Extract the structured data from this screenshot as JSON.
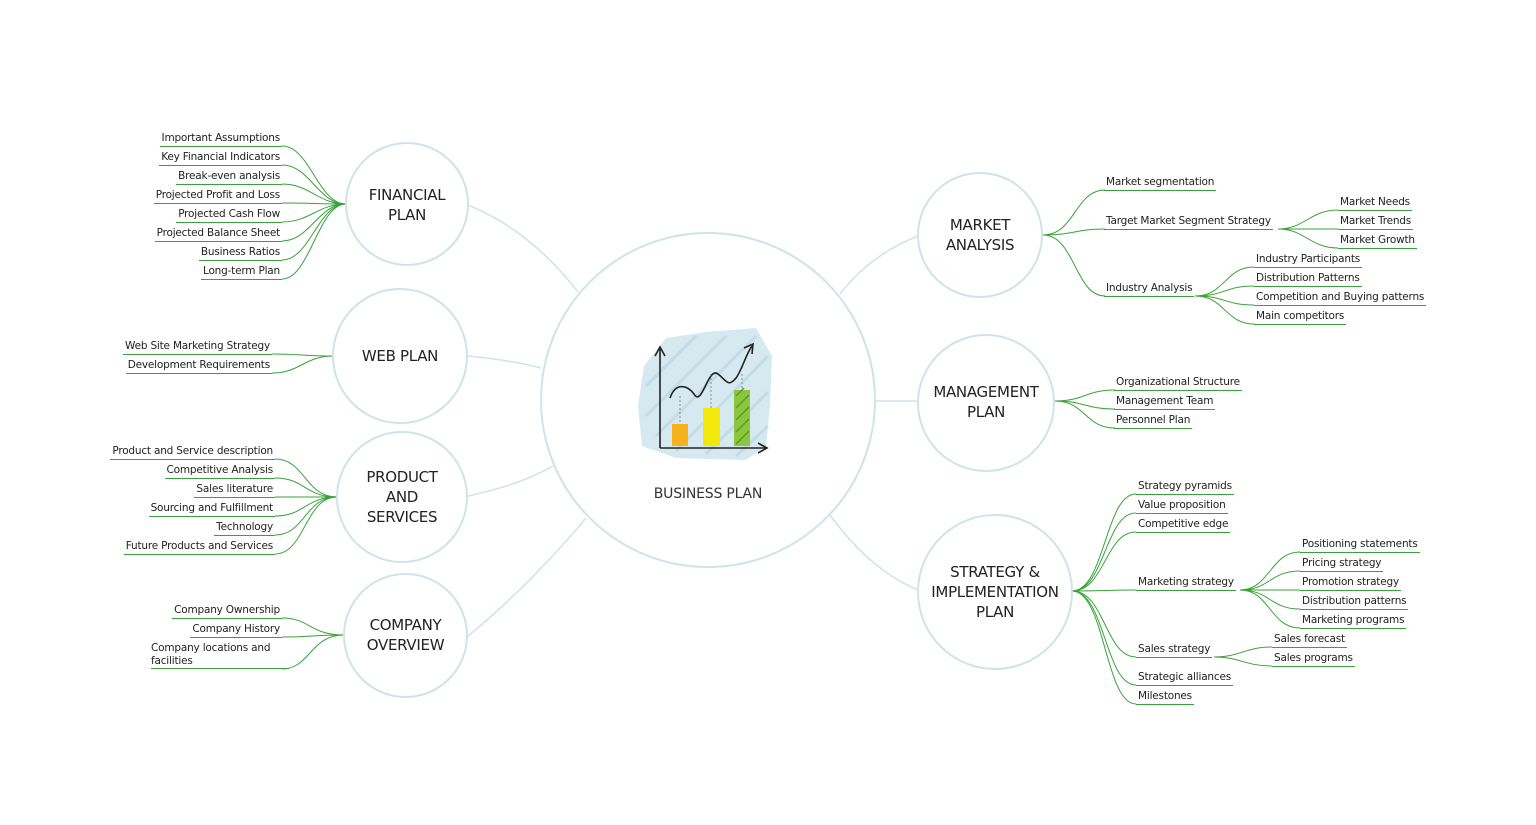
{
  "central": {
    "title": "BUSINESS PLAN",
    "icon": "chart-growth-icon"
  },
  "branches": {
    "financial": {
      "title": [
        "FINANCIAL",
        "PLAN"
      ],
      "items": [
        "Important Assumptions",
        "Key Financial Indicators",
        "Break-even analysis",
        "Projected Profit and Loss",
        "Projected Cash Flow",
        "Projected Balance Sheet",
        "Business Ratios",
        "Long-term Plan"
      ]
    },
    "web": {
      "title": [
        "WEB PLAN"
      ],
      "items": [
        "Web Site Marketing Strategy",
        "Development Requirements"
      ]
    },
    "product": {
      "title": [
        "PRODUCT",
        "AND",
        "SERVICES"
      ],
      "items": [
        "Product and Service description",
        "Competitive Analysis",
        "Sales literature",
        "Sourcing and Fulfillment",
        "Technology",
        "Future Products and Services"
      ]
    },
    "company": {
      "title": [
        "COMPANY",
        "OVERVIEW"
      ],
      "items": [
        "Company Ownership",
        "Company History",
        "Company locations and facilities"
      ]
    },
    "market": {
      "title": [
        "MARKET",
        "ANALYSIS"
      ],
      "items": [
        "Market segmentation",
        "Target Market Segment Strategy",
        "Industry Analysis"
      ],
      "target_sub": [
        "Market Needs",
        "Market Trends",
        "Market Growth"
      ],
      "industry_sub": [
        "Industry Participants",
        "Distribution Patterns",
        "Competition and Buying patterns",
        "Main competitors"
      ]
    },
    "management": {
      "title": [
        "MANAGEMENT",
        "PLAN"
      ],
      "items": [
        "Organizational Structure",
        "Management Team",
        "Personnel Plan"
      ]
    },
    "strategy": {
      "title": [
        "STRATEGY &",
        "IMPLEMENTATION",
        "PLAN"
      ],
      "items": [
        "Strategy pyramids",
        "Value proposition",
        "Competitive edge",
        "Marketing strategy",
        "Sales strategy",
        "Strategic alliances",
        "Milestones"
      ],
      "marketing_sub": [
        "Positioning statements",
        "Pricing strategy",
        "Promotion strategy",
        "Distribution patterns",
        "Marketing programs"
      ],
      "sales_sub": [
        "Sales forecast",
        "Sales programs"
      ]
    }
  },
  "colors": {
    "circle_border": "#cfe3ea",
    "connector": "#cfe3ea",
    "branch_line": "#3aa13a"
  }
}
